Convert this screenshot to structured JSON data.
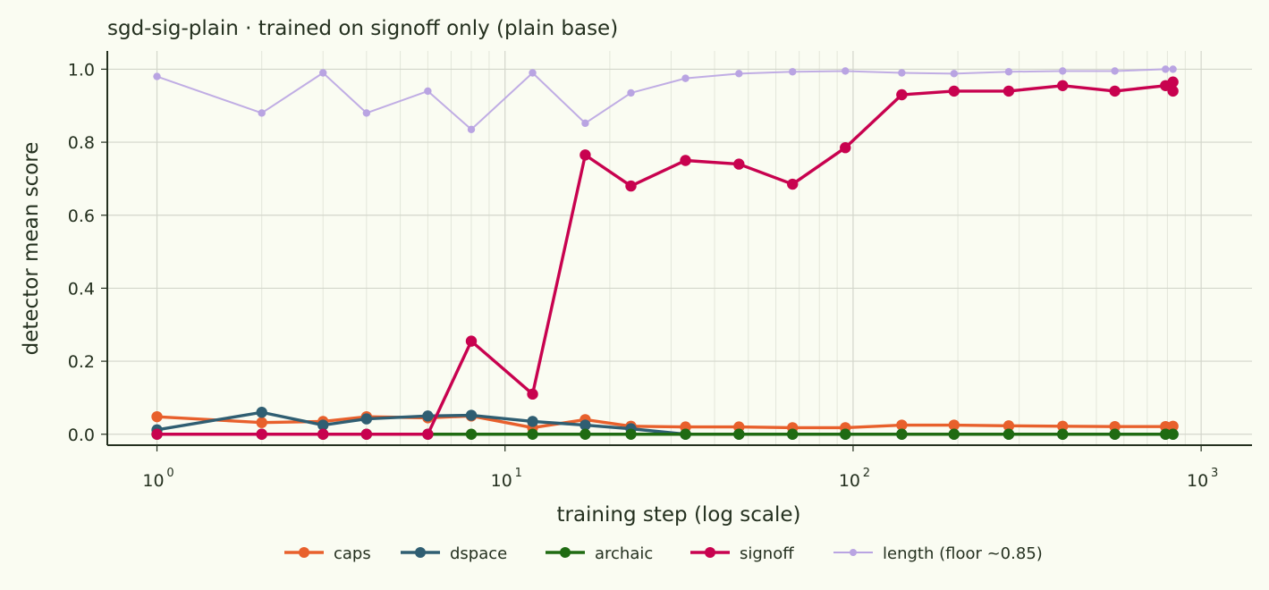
{
  "chart_data": {
    "type": "line",
    "title": "sgd-sig-plain · trained on signoff only (plain base)",
    "xlabel": "training step (log scale)",
    "ylabel": "detector mean score",
    "x_scale": "log",
    "xlim": [
      0.72,
      1400
    ],
    "ylim": [
      -0.03,
      1.05
    ],
    "x_ticks": [
      1,
      10,
      100,
      1000
    ],
    "x_tick_base": "10",
    "x_tick_exponents": [
      "0",
      "1",
      "2",
      "3"
    ],
    "y_ticks": [
      "0.0",
      "0.2",
      "0.4",
      "0.6",
      "0.8",
      "1.0"
    ],
    "grid": true,
    "legend_position": "bottom-center",
    "x": [
      1,
      2,
      3,
      4,
      6,
      8,
      12,
      17,
      23,
      33,
      47,
      67,
      95,
      138,
      195,
      280,
      400,
      565,
      790,
      830
    ],
    "series": [
      {
        "name": "caps",
        "color": "#e8602c",
        "values": [
          0.048,
          0.032,
          0.035,
          0.048,
          0.045,
          0.05,
          0.018,
          0.04,
          0.022,
          0.02,
          0.02,
          0.018,
          0.018,
          0.025,
          0.025,
          0.023,
          0.022,
          0.021,
          0.021,
          0.022
        ]
      },
      {
        "name": "dspace",
        "color": "#2f5e72",
        "values": [
          0.012,
          0.06,
          0.025,
          0.042,
          0.05,
          0.052,
          0.035,
          0.025,
          0.015,
          0.0,
          0.0,
          0.0,
          0.0,
          0.0,
          0.0,
          0.0,
          0.0,
          0.0,
          0.0,
          0.0
        ]
      },
      {
        "name": "archaic",
        "color": "#1f6b12",
        "values": [
          0.0,
          0.0,
          0.0,
          0.0,
          0.0,
          0.0,
          0.0,
          0.0,
          0.0,
          0.0,
          0.0,
          0.0,
          0.0,
          0.0,
          0.0,
          0.0,
          0.0,
          0.0,
          0.0,
          0.0
        ]
      },
      {
        "name": "signoff",
        "color": "#c8024f",
        "values": [
          0.0,
          0.0,
          0.0,
          0.0,
          0.0,
          0.255,
          0.11,
          0.765,
          0.68,
          0.75,
          0.74,
          0.685,
          0.785,
          0.93,
          0.94,
          0.94,
          0.955,
          0.94,
          0.955,
          0.94
        ],
        "extra_points": [
          {
            "x": 830,
            "y": 0.965
          }
        ]
      },
      {
        "name": "length (floor ~0.85)",
        "color": "#b9a4e2",
        "values": [
          0.98,
          0.88,
          0.99,
          0.88,
          0.94,
          0.835,
          0.99,
          0.852,
          0.935,
          0.975,
          0.988,
          0.993,
          0.995,
          0.99,
          0.988,
          0.993,
          0.995,
          0.995,
          1.0,
          1.0
        ]
      }
    ]
  }
}
